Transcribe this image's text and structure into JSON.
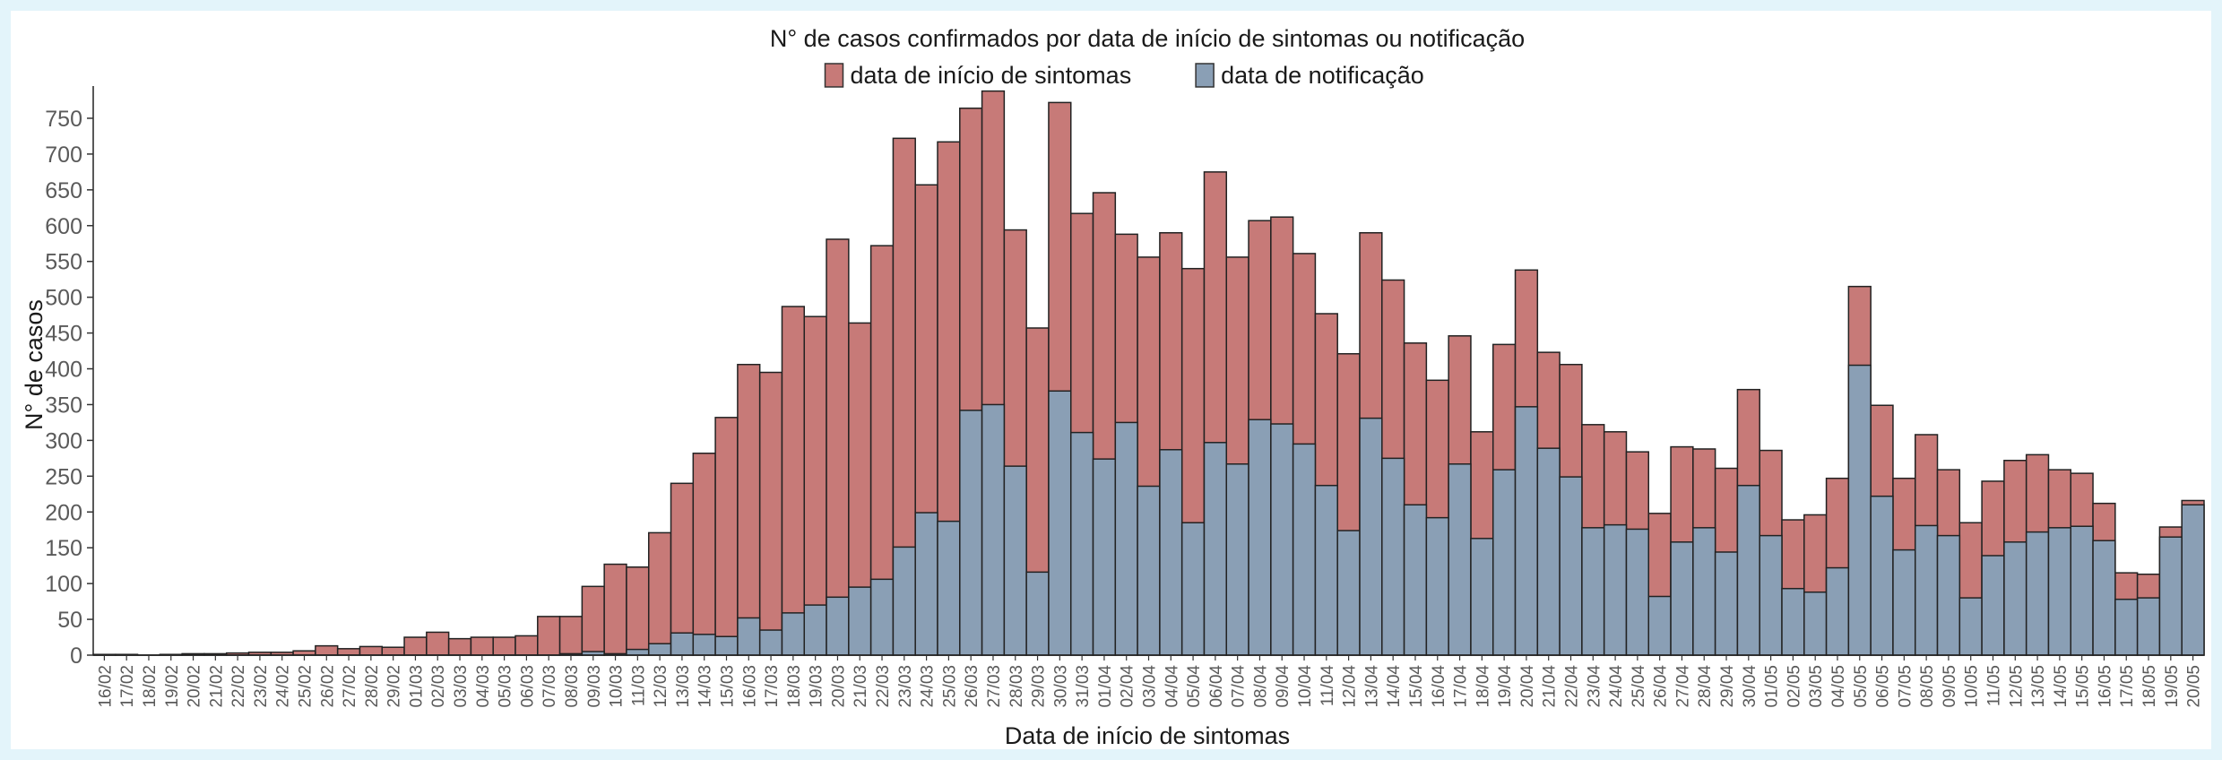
{
  "chart_data": {
    "type": "bar",
    "title": "N° de casos confirmados por data de início de sintomas ou notificação",
    "xlabel": "Data de início de sintomas",
    "ylabel": "N° de casos",
    "ylim": [
      0,
      780
    ],
    "yticks": [
      0,
      50,
      100,
      150,
      200,
      250,
      300,
      350,
      400,
      450,
      500,
      550,
      600,
      650,
      700,
      750
    ],
    "legend_position": "top-center",
    "categories": [
      "16/02",
      "17/02",
      "18/02",
      "19/02",
      "20/02",
      "21/02",
      "22/02",
      "23/02",
      "24/02",
      "25/02",
      "26/02",
      "27/02",
      "28/02",
      "29/02",
      "01/03",
      "02/03",
      "03/03",
      "04/03",
      "05/03",
      "06/03",
      "07/03",
      "08/03",
      "09/03",
      "10/03",
      "11/03",
      "12/03",
      "13/03",
      "14/03",
      "15/03",
      "16/03",
      "17/03",
      "18/03",
      "19/03",
      "20/03",
      "21/03",
      "22/03",
      "23/03",
      "24/03",
      "25/03",
      "26/03",
      "27/03",
      "28/03",
      "29/03",
      "30/03",
      "31/03",
      "01/04",
      "02/04",
      "03/04",
      "04/04",
      "05/04",
      "06/04",
      "07/04",
      "08/04",
      "09/04",
      "10/04",
      "11/04",
      "12/04",
      "13/04",
      "14/04",
      "15/04",
      "16/04",
      "17/04",
      "18/04",
      "19/04",
      "20/04",
      "21/04",
      "22/04",
      "23/04",
      "24/04",
      "25/04",
      "26/04",
      "27/04",
      "28/04",
      "29/04",
      "30/04",
      "01/05",
      "02/05",
      "03/05",
      "04/05",
      "05/05",
      "06/05",
      "07/05",
      "08/05",
      "09/05",
      "10/05",
      "11/05",
      "12/05",
      "13/05",
      "14/05",
      "15/05",
      "16/05",
      "17/05",
      "18/05",
      "19/05",
      "20/05"
    ],
    "series": [
      {
        "name": "data de início de sintomas",
        "color": "#c77a78",
        "values": [
          1,
          1,
          0,
          1,
          2,
          2,
          3,
          4,
          4,
          6,
          13,
          9,
          12,
          11,
          25,
          32,
          23,
          25,
          25,
          27,
          54,
          54,
          96,
          127,
          123,
          171,
          240,
          282,
          332,
          406,
          395,
          487,
          473,
          581,
          464,
          572,
          722,
          657,
          717,
          764,
          788,
          594,
          457,
          772,
          617,
          646,
          588,
          556,
          590,
          540,
          675,
          556,
          607,
          612,
          561,
          477,
          421,
          590,
          524,
          436,
          384,
          446,
          312,
          434,
          538,
          423,
          406,
          322,
          312,
          284,
          198,
          291,
          288,
          261,
          371,
          286,
          189,
          196,
          247,
          515,
          349,
          247,
          308,
          259,
          185,
          243,
          272,
          280,
          259,
          254,
          212,
          115,
          113,
          179,
          216
        ]
      },
      {
        "name": "data de notificação",
        "color": "#8a9fb5",
        "values": [
          0,
          0,
          0,
          0,
          0,
          0,
          0,
          0,
          0,
          0,
          0,
          0,
          0,
          0,
          0,
          0,
          0,
          0,
          0,
          0,
          0,
          2,
          5,
          2,
          8,
          16,
          31,
          29,
          26,
          52,
          35,
          59,
          70,
          81,
          95,
          106,
          151,
          199,
          187,
          342,
          350,
          264,
          116,
          369,
          311,
          274,
          325,
          236,
          287,
          185,
          297,
          267,
          329,
          323,
          295,
          237,
          174,
          331,
          275,
          210,
          192,
          267,
          163,
          259,
          347,
          289,
          249,
          178,
          182,
          176,
          82,
          158,
          178,
          144,
          237,
          167,
          93,
          88,
          122,
          405,
          222,
          147,
          181,
          167,
          80,
          139,
          158,
          172,
          178,
          180,
          160,
          78,
          80,
          165,
          210
        ]
      }
    ]
  }
}
